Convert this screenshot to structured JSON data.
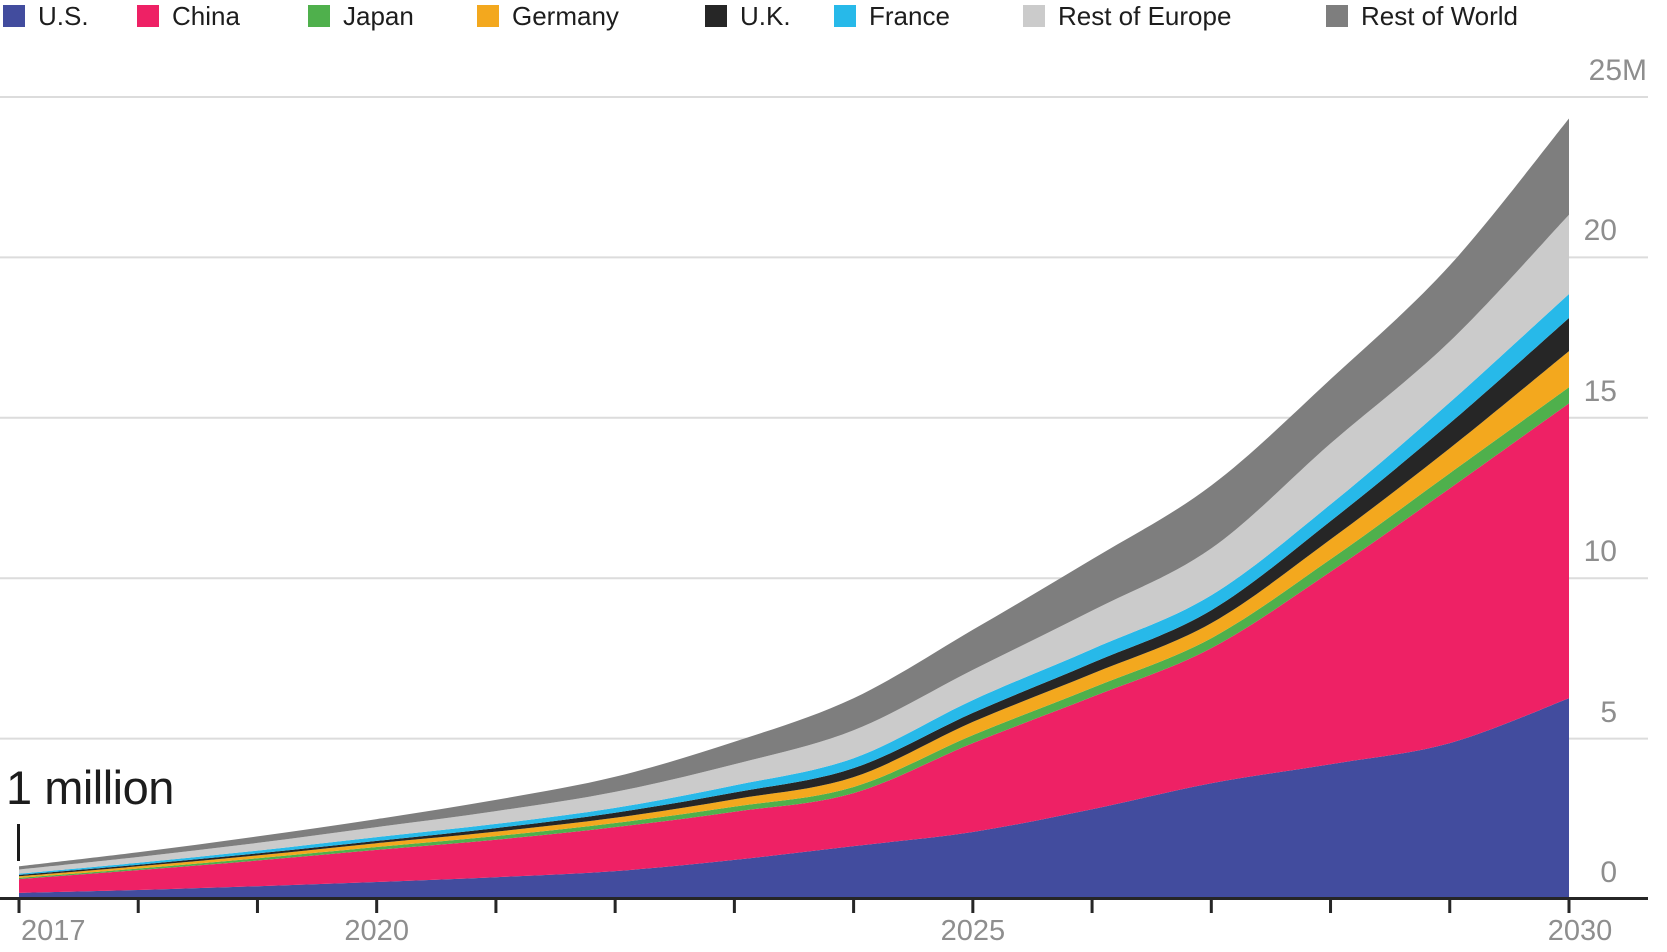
{
  "legend": {
    "items": [
      {
        "label": "U.S.",
        "color": "#424C9E"
      },
      {
        "label": "China",
        "color": "#EE2165"
      },
      {
        "label": "Japan",
        "color": "#4FB04C"
      },
      {
        "label": "Germany",
        "color": "#F3A81E"
      },
      {
        "label": "U.K.",
        "color": "#262626"
      },
      {
        "label": "France",
        "color": "#27B9E9"
      },
      {
        "label": "Rest of Europe",
        "color": "#CBCBCB"
      },
      {
        "label": "Rest of World",
        "color": "#7E7E7E"
      }
    ]
  },
  "annotation": {
    "text": "1 million"
  },
  "chart_data": {
    "type": "area",
    "stacked": true,
    "title": "",
    "xlabel": "",
    "ylabel": "",
    "x": [
      2017,
      2018,
      2019,
      2020,
      2021,
      2022,
      2023,
      2024,
      2025,
      2026,
      2027,
      2028,
      2029,
      2030
    ],
    "series": [
      {
        "name": "U.S.",
        "color": "#424C9E",
        "values": [
          0.19,
          0.28,
          0.4,
          0.53,
          0.68,
          0.87,
          1.22,
          1.65,
          2.09,
          2.8,
          3.61,
          4.2,
          4.86,
          6.26
        ]
      },
      {
        "name": "China",
        "color": "#EE2165",
        "values": [
          0.43,
          0.62,
          0.8,
          1.0,
          1.17,
          1.37,
          1.5,
          1.65,
          2.77,
          3.5,
          4.21,
          6.0,
          7.94,
          9.19
        ]
      },
      {
        "name": "Japan",
        "color": "#4FB04C",
        "values": [
          0.04,
          0.05,
          0.07,
          0.09,
          0.11,
          0.13,
          0.16,
          0.19,
          0.25,
          0.28,
          0.31,
          0.39,
          0.47,
          0.5
        ]
      },
      {
        "name": "Germany",
        "color": "#F3A81E",
        "values": [
          0.05,
          0.07,
          0.09,
          0.12,
          0.14,
          0.16,
          0.23,
          0.31,
          0.41,
          0.44,
          0.47,
          0.62,
          0.78,
          1.13
        ]
      },
      {
        "name": "U.K.",
        "color": "#262626",
        "values": [
          0.04,
          0.05,
          0.06,
          0.07,
          0.11,
          0.16,
          0.21,
          0.28,
          0.28,
          0.34,
          0.4,
          0.57,
          0.78,
          1.03
        ]
      },
      {
        "name": "France",
        "color": "#27B9E9",
        "values": [
          0.04,
          0.06,
          0.09,
          0.12,
          0.13,
          0.15,
          0.22,
          0.31,
          0.4,
          0.43,
          0.47,
          0.52,
          0.65,
          0.75
        ]
      },
      {
        "name": "Rest of Europe",
        "color": "#CBCBCB",
        "values": [
          0.13,
          0.18,
          0.24,
          0.31,
          0.4,
          0.5,
          0.66,
          0.87,
          0.94,
          1.2,
          1.46,
          1.9,
          1.9,
          2.47
        ]
      },
      {
        "name": "Rest of World",
        "color": "#7E7E7E",
        "values": [
          0.1,
          0.15,
          0.2,
          0.25,
          0.35,
          0.47,
          0.7,
          1.0,
          1.25,
          1.6,
          1.96,
          2.0,
          2.37,
          3.0
        ]
      }
    ],
    "ylim": [
      0,
      25
    ],
    "y_ticks": [
      {
        "value": 0,
        "label": "0"
      },
      {
        "value": 5,
        "label": "5"
      },
      {
        "value": 10,
        "label": "10"
      },
      {
        "value": 15,
        "label": "15"
      },
      {
        "value": 20,
        "label": "20"
      },
      {
        "value": 25,
        "label": "25M"
      }
    ],
    "x_tick_labels": [
      {
        "year": 2017,
        "label": "2017"
      },
      {
        "year": 2020,
        "label": "2020"
      },
      {
        "year": 2025,
        "label": "2025"
      },
      {
        "year": 2030,
        "label": "2030"
      }
    ],
    "grid": true,
    "legend_position": "top"
  },
  "colors": {
    "gridline": "#dcdcdc",
    "axis_line": "#262626",
    "axis_label": "#8e8e8e",
    "legend_text": "#1d1d1d",
    "annotation_text": "#1c1c1c"
  }
}
